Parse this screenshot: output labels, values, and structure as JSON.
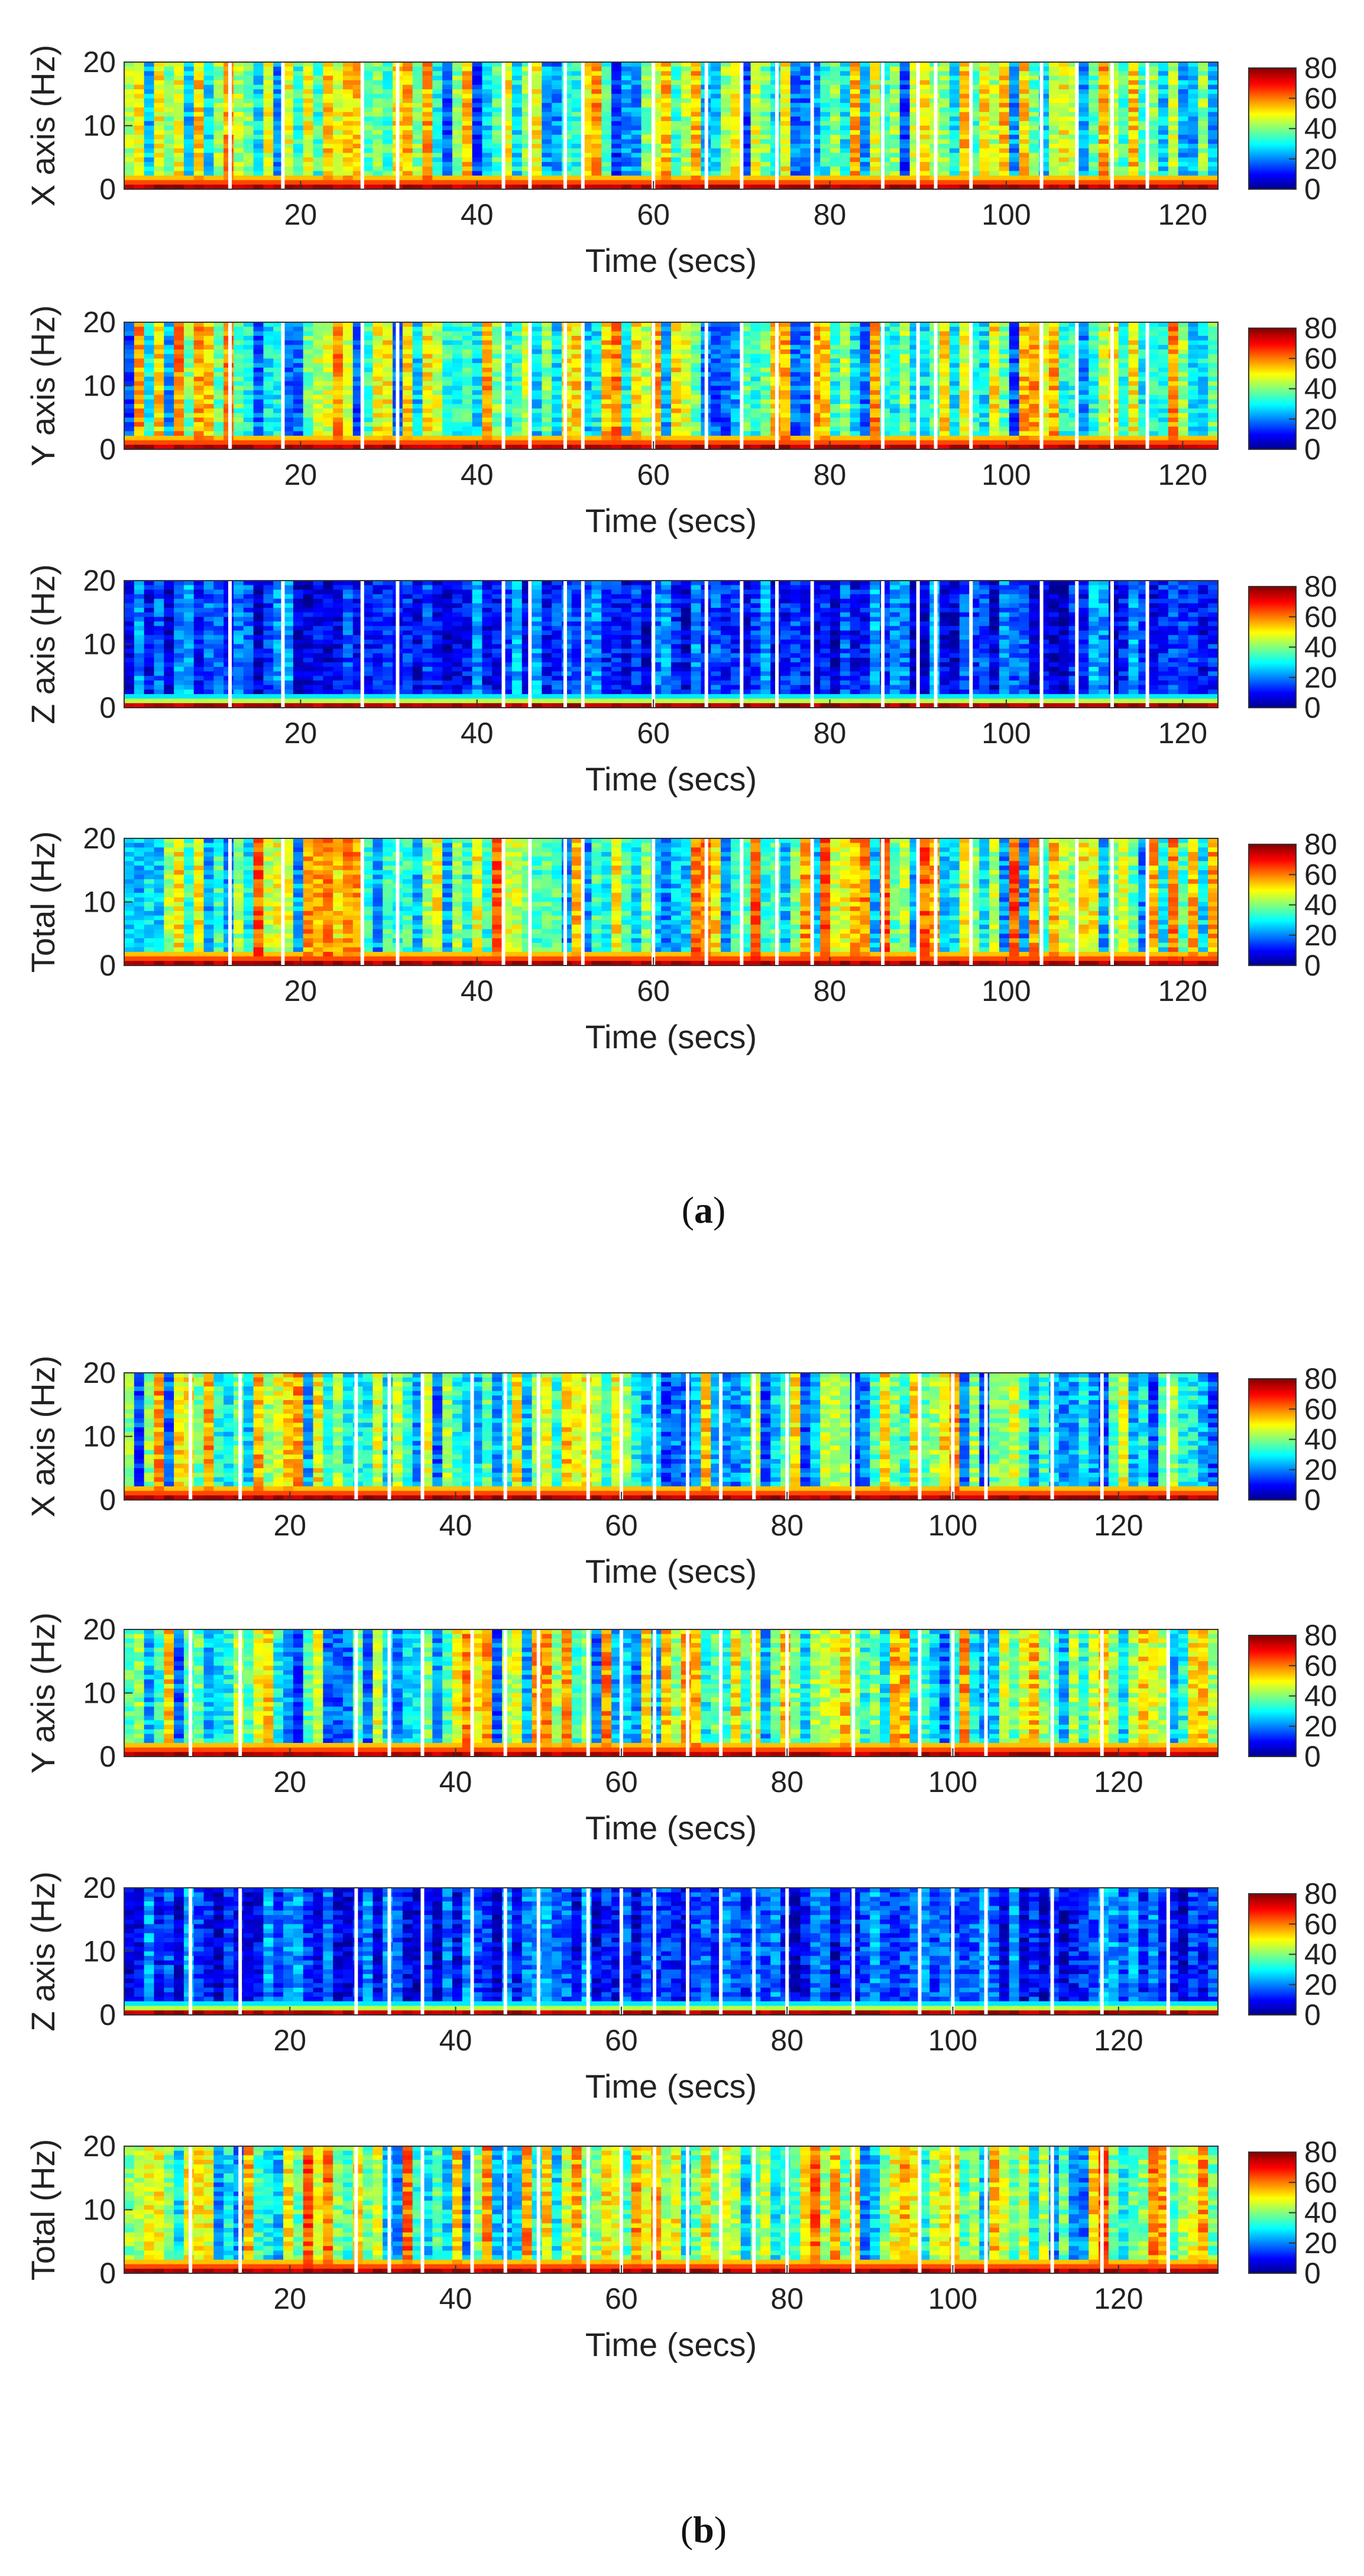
{
  "panels": [
    {
      "label": "(a)",
      "label_text": "a"
    },
    {
      "label": "(b)",
      "label_text": "b"
    }
  ],
  "chart_data": [
    {
      "type": "heatmap",
      "panel": "a",
      "ylabel": "X axis (Hz)",
      "xlabel": "Time (secs)",
      "ylim": [
        0,
        20
      ],
      "xlim": [
        0,
        124
      ],
      "yticks": [
        0,
        10,
        20
      ],
      "xticks": [
        20,
        40,
        60,
        80,
        100,
        120
      ],
      "colorbar": {
        "range": [
          0,
          80
        ],
        "ticks": [
          0,
          20,
          40,
          60,
          80
        ]
      }
    },
    {
      "type": "heatmap",
      "panel": "a",
      "ylabel": "Y axis (Hz)",
      "xlabel": "Time (secs)",
      "ylim": [
        0,
        20
      ],
      "xlim": [
        0,
        124
      ],
      "yticks": [
        0,
        10,
        20
      ],
      "xticks": [
        20,
        40,
        60,
        80,
        100,
        120
      ],
      "colorbar": {
        "range": [
          0,
          80
        ],
        "ticks": [
          0,
          20,
          40,
          60,
          80
        ]
      }
    },
    {
      "type": "heatmap",
      "panel": "a",
      "ylabel": "Z axis (Hz)",
      "xlabel": "Time (secs)",
      "ylim": [
        0,
        20
      ],
      "xlim": [
        0,
        124
      ],
      "yticks": [
        0,
        10,
        20
      ],
      "xticks": [
        20,
        40,
        60,
        80,
        100,
        120
      ],
      "colorbar": {
        "range": [
          0,
          80
        ],
        "ticks": [
          0,
          20,
          40,
          60,
          80
        ]
      }
    },
    {
      "type": "heatmap",
      "panel": "a",
      "ylabel": "Total (Hz)",
      "xlabel": "Time (secs)",
      "ylim": [
        0,
        20
      ],
      "xlim": [
        0,
        124
      ],
      "yticks": [
        0,
        10,
        20
      ],
      "xticks": [
        20,
        40,
        60,
        80,
        100,
        120
      ],
      "colorbar": {
        "range": [
          0,
          80
        ],
        "ticks": [
          0,
          20,
          40,
          60,
          80
        ]
      }
    },
    {
      "type": "heatmap",
      "panel": "b",
      "ylabel": "X axis (Hz)",
      "xlabel": "Time (secs)",
      "ylim": [
        0,
        20
      ],
      "xlim": [
        0,
        132
      ],
      "yticks": [
        0,
        10,
        20
      ],
      "xticks": [
        20,
        40,
        60,
        80,
        100,
        120
      ],
      "colorbar": {
        "range": [
          0,
          80
        ],
        "ticks": [
          0,
          20,
          40,
          60,
          80
        ]
      }
    },
    {
      "type": "heatmap",
      "panel": "b",
      "ylabel": "Y axis (Hz)",
      "xlabel": "Time (secs)",
      "ylim": [
        0,
        20
      ],
      "xlim": [
        0,
        132
      ],
      "yticks": [
        0,
        10,
        20
      ],
      "xticks": [
        20,
        40,
        60,
        80,
        100,
        120
      ],
      "colorbar": {
        "range": [
          0,
          80
        ],
        "ticks": [
          0,
          20,
          40,
          60,
          80
        ]
      }
    },
    {
      "type": "heatmap",
      "panel": "b",
      "ylabel": "Z axis (Hz)",
      "xlabel": "Time (secs)",
      "ylim": [
        0,
        20
      ],
      "xlim": [
        0,
        132
      ],
      "yticks": [
        0,
        10,
        20
      ],
      "xticks": [
        20,
        40,
        60,
        80,
        100,
        120
      ],
      "colorbar": {
        "range": [
          0,
          80
        ],
        "ticks": [
          0,
          20,
          40,
          60,
          80
        ]
      }
    },
    {
      "type": "heatmap",
      "panel": "b",
      "ylabel": "Total (Hz)",
      "xlabel": "Time (secs)",
      "ylim": [
        0,
        20
      ],
      "xlim": [
        0,
        132
      ],
      "yticks": [
        0,
        10,
        20
      ],
      "xticks": [
        20,
        40,
        60,
        80,
        100,
        120
      ],
      "colorbar": {
        "range": [
          0,
          80
        ],
        "ticks": [
          0,
          20,
          40,
          60,
          80
        ]
      }
    }
  ]
}
